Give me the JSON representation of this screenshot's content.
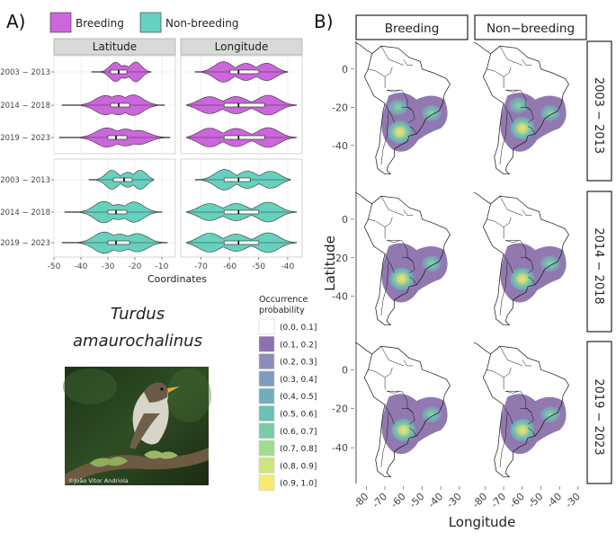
{
  "panel_a": {
    "letter": "A)",
    "legend": [
      {
        "label": "Breeding",
        "color": "#CC66DD"
      },
      {
        "label": "Non-breeding",
        "color": "#66D1BE"
      }
    ],
    "facets": [
      "Latitude",
      "Longitude"
    ],
    "xlabel": "Coordinates"
  },
  "species": {
    "line1": "Turdus",
    "line2": "amaurochalinus"
  },
  "photo": {
    "credit": "©João Vitor Andriola",
    "subject": "bird-on-mossy-branch"
  },
  "occurrence_legend": {
    "title_line1": "Occurrence",
    "title_line2": "probability",
    "bins": [
      {
        "label": "(0.0, 0.1]",
        "color": "#FFFFFF"
      },
      {
        "label": "(0.1, 0.2]",
        "color": "#8B72AC"
      },
      {
        "label": "(0.2, 0.3]",
        "color": "#8C8DB8"
      },
      {
        "label": "(0.3, 0.4]",
        "color": "#7F9CC0"
      },
      {
        "label": "(0.4, 0.5]",
        "color": "#73ADBD"
      },
      {
        "label": "(0.5, 0.6]",
        "color": "#6CC0B5"
      },
      {
        "label": "(0.6, 0.7]",
        "color": "#79CCA4"
      },
      {
        "label": "(0.7, 0.8]",
        "color": "#A0DB8E"
      },
      {
        "label": "(0.8, 0.9]",
        "color": "#CFE47A"
      },
      {
        "label": "(0.9, 1.0]",
        "color": "#F8EA70"
      }
    ]
  },
  "panel_b": {
    "letter": "B)",
    "columns": [
      "Breeding",
      "Non−breeding"
    ],
    "rows": [
      "2003 − 2013",
      "2014 − 2018",
      "2019 − 2023"
    ],
    "xlabel": "Longitude",
    "ylabel": "Latitude"
  },
  "chart_data": [
    {
      "type": "violin",
      "title": "Breeding",
      "categories": [
        "2003 − 2013",
        "2014 − 2018",
        "2019 − 2023"
      ],
      "facets": [
        {
          "name": "Latitude",
          "xlim": [
            -50,
            -5
          ],
          "xticks": [
            -50,
            -40,
            -30,
            -20,
            -10
          ],
          "tick_labels": [
            "-50",
            "-40",
            "-30",
            "-20",
            "-10"
          ],
          "series": [
            {
              "category": "2003 − 2013",
              "min": -36,
              "max": -14,
              "q1": -29,
              "median": -26,
              "q3": -23
            },
            {
              "category": "2014 − 2018",
              "min": -47,
              "max": -9,
              "q1": -29,
              "median": -26,
              "q3": -22
            },
            {
              "category": "2019 − 2023",
              "min": -48,
              "max": -7,
              "q1": -30,
              "median": -27,
              "q3": -23
            }
          ]
        },
        {
          "name": "Longitude",
          "xlim": [
            -77,
            -35
          ],
          "xticks": [
            -70,
            -60,
            -50,
            -40
          ],
          "tick_labels": [
            "-70",
            "-60",
            "-50",
            "-40"
          ],
          "series": [
            {
              "category": "2003 − 2013",
              "min": -72,
              "max": -40,
              "q1": -60,
              "median": -57,
              "q3": -50
            },
            {
              "category": "2014 − 2018",
              "min": -75,
              "max": -37,
              "q1": -62,
              "median": -57,
              "q3": -48
            },
            {
              "category": "2019 − 2023",
              "min": -75,
              "max": -37,
              "q1": -62,
              "median": -57,
              "q3": -48
            }
          ]
        }
      ]
    },
    {
      "type": "violin",
      "title": "Non-breeding",
      "categories": [
        "2003 − 2013",
        "2014 − 2018",
        "2019 − 2023"
      ],
      "facets": [
        {
          "name": "Latitude",
          "xlim": [
            -50,
            -5
          ],
          "xticks": [
            -50,
            -40,
            -30,
            -20,
            -10
          ],
          "tick_labels": [
            "-50",
            "-40",
            "-30",
            "-20",
            "-10"
          ],
          "series": [
            {
              "category": "2003 − 2013",
              "min": -37,
              "max": -13,
              "q1": -28,
              "median": -24,
              "q3": -21
            },
            {
              "category": "2014 − 2018",
              "min": -46,
              "max": -10,
              "q1": -30,
              "median": -27,
              "q3": -23
            },
            {
              "category": "2019 − 2023",
              "min": -47,
              "max": -8,
              "q1": -30,
              "median": -27,
              "q3": -22
            }
          ]
        },
        {
          "name": "Longitude",
          "xlim": [
            -77,
            -35
          ],
          "xticks": [
            -70,
            -60,
            -50,
            -40
          ],
          "tick_labels": [
            "-70",
            "-60",
            "-50",
            "-40"
          ],
          "series": [
            {
              "category": "2003 − 2013",
              "min": -72,
              "max": -39,
              "q1": -62,
              "median": -57,
              "q3": -53
            },
            {
              "category": "2014 − 2018",
              "min": -75,
              "max": -37,
              "q1": -62,
              "median": -57,
              "q3": -50
            },
            {
              "category": "2019 − 2023",
              "min": -75,
              "max": -37,
              "q1": -62,
              "median": -57,
              "q3": -50
            }
          ]
        }
      ]
    },
    {
      "type": "heatmap",
      "title": "Occurrence probability maps",
      "xlabel": "Longitude",
      "ylabel": "Latitude",
      "xlim": [
        -85,
        -28
      ],
      "ylim": [
        -57,
        14
      ],
      "xticks": [
        -80,
        -70,
        -60,
        -50,
        -40,
        -30
      ],
      "yticks": [
        0,
        -20,
        -40
      ],
      "columns": [
        "Breeding",
        "Non−breeding"
      ],
      "rows": [
        "2003 − 2013",
        "2014 − 2018",
        "2019 − 2023"
      ],
      "hotspots": [
        [
          [
            {
              "lon": -62,
              "lat": -33,
              "p": 0.95
            },
            {
              "lon": -45,
              "lat": -23,
              "p": 0.75
            },
            {
              "lon": -63,
              "lat": -20,
              "p": 0.55
            }
          ],
          [
            {
              "lon": -60,
              "lat": -31,
              "p": 0.95
            },
            {
              "lon": -45,
              "lat": -23,
              "p": 0.8
            },
            {
              "lon": -62,
              "lat": -19,
              "p": 0.6
            }
          ]
        ],
        [
          [
            {
              "lon": -61,
              "lat": -31,
              "p": 0.95
            },
            {
              "lon": -45,
              "lat": -23,
              "p": 0.7
            }
          ],
          [
            {
              "lon": -60,
              "lat": -31,
              "p": 0.95
            },
            {
              "lon": -45,
              "lat": -23,
              "p": 0.7
            }
          ]
        ],
        [
          [
            {
              "lon": -60,
              "lat": -31,
              "p": 0.95
            },
            {
              "lon": -45,
              "lat": -23,
              "p": 0.7
            }
          ],
          [
            {
              "lon": -60,
              "lat": -31,
              "p": 0.95
            },
            {
              "lon": -45,
              "lat": -23,
              "p": 0.7
            }
          ]
        ]
      ]
    }
  ]
}
